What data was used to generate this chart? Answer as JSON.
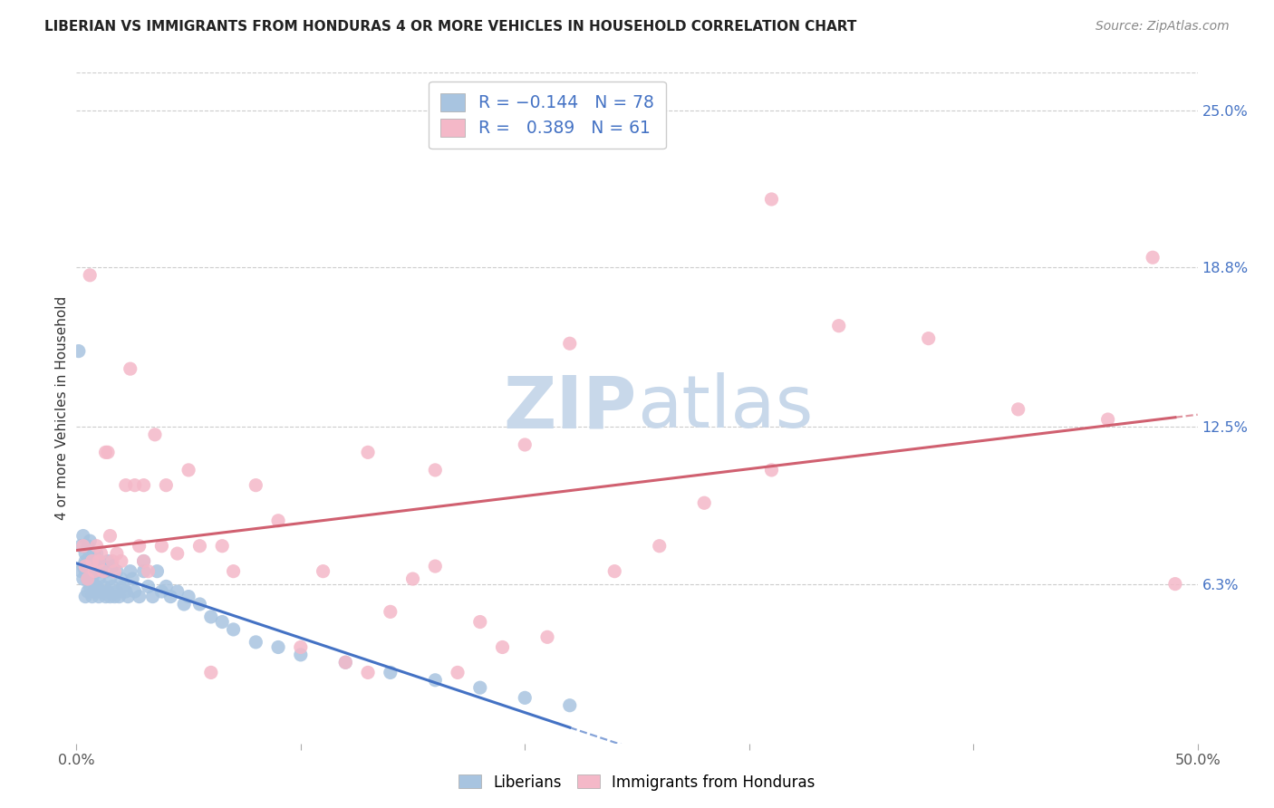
{
  "title": "LIBERIAN VS IMMIGRANTS FROM HONDURAS 4 OR MORE VEHICLES IN HOUSEHOLD CORRELATION CHART",
  "source": "Source: ZipAtlas.com",
  "ylabel": "4 or more Vehicles in Household",
  "xlim": [
    0.0,
    0.5
  ],
  "ylim": [
    0.0,
    0.265
  ],
  "ytick_labels_right": [
    "25.0%",
    "18.8%",
    "12.5%",
    "6.3%"
  ],
  "ytick_values_right": [
    0.25,
    0.188,
    0.125,
    0.063
  ],
  "liberian_R": -0.144,
  "liberian_N": 78,
  "honduras_R": 0.389,
  "honduras_N": 61,
  "liberian_color": "#a8c4e0",
  "liberian_line_color": "#4472c4",
  "honduras_color": "#f4b8c8",
  "honduras_line_color": "#d06070",
  "watermark_color": "#c8d8ea",
  "legend_labels": [
    "Liberians",
    "Immigrants from Honduras"
  ],
  "background_color": "#ffffff",
  "liberian_x": [
    0.001,
    0.002,
    0.002,
    0.003,
    0.003,
    0.003,
    0.004,
    0.004,
    0.004,
    0.004,
    0.005,
    0.005,
    0.005,
    0.005,
    0.006,
    0.006,
    0.006,
    0.006,
    0.007,
    0.007,
    0.007,
    0.008,
    0.008,
    0.008,
    0.009,
    0.009,
    0.009,
    0.01,
    0.01,
    0.01,
    0.011,
    0.011,
    0.012,
    0.012,
    0.013,
    0.013,
    0.014,
    0.014,
    0.015,
    0.015,
    0.016,
    0.016,
    0.017,
    0.018,
    0.018,
    0.019,
    0.02,
    0.021,
    0.022,
    0.023,
    0.024,
    0.025,
    0.026,
    0.028,
    0.03,
    0.03,
    0.032,
    0.034,
    0.036,
    0.038,
    0.04,
    0.042,
    0.045,
    0.048,
    0.05,
    0.055,
    0.06,
    0.065,
    0.07,
    0.08,
    0.09,
    0.1,
    0.12,
    0.14,
    0.16,
    0.18,
    0.2,
    0.22
  ],
  "liberian_y": [
    0.155,
    0.068,
    0.078,
    0.065,
    0.07,
    0.082,
    0.058,
    0.072,
    0.068,
    0.075,
    0.06,
    0.065,
    0.072,
    0.078,
    0.062,
    0.068,
    0.075,
    0.08,
    0.058,
    0.065,
    0.072,
    0.06,
    0.068,
    0.075,
    0.062,
    0.068,
    0.075,
    0.058,
    0.065,
    0.072,
    0.06,
    0.068,
    0.062,
    0.07,
    0.058,
    0.068,
    0.06,
    0.072,
    0.058,
    0.065,
    0.062,
    0.07,
    0.058,
    0.06,
    0.068,
    0.058,
    0.065,
    0.062,
    0.06,
    0.058,
    0.068,
    0.065,
    0.06,
    0.058,
    0.068,
    0.072,
    0.062,
    0.058,
    0.068,
    0.06,
    0.062,
    0.058,
    0.06,
    0.055,
    0.058,
    0.055,
    0.05,
    0.048,
    0.045,
    0.04,
    0.038,
    0.035,
    0.032,
    0.028,
    0.025,
    0.022,
    0.018,
    0.015
  ],
  "honduras_x": [
    0.003,
    0.004,
    0.005,
    0.006,
    0.007,
    0.008,
    0.009,
    0.01,
    0.011,
    0.012,
    0.013,
    0.014,
    0.015,
    0.016,
    0.017,
    0.018,
    0.02,
    0.022,
    0.024,
    0.026,
    0.028,
    0.03,
    0.03,
    0.032,
    0.035,
    0.038,
    0.04,
    0.045,
    0.05,
    0.055,
    0.06,
    0.065,
    0.07,
    0.08,
    0.09,
    0.1,
    0.11,
    0.12,
    0.13,
    0.14,
    0.15,
    0.16,
    0.17,
    0.18,
    0.19,
    0.2,
    0.21,
    0.22,
    0.24,
    0.26,
    0.28,
    0.31,
    0.34,
    0.38,
    0.42,
    0.46,
    0.49,
    0.13,
    0.16,
    0.31,
    0.48
  ],
  "honduras_y": [
    0.078,
    0.07,
    0.065,
    0.185,
    0.072,
    0.068,
    0.078,
    0.072,
    0.075,
    0.068,
    0.115,
    0.115,
    0.082,
    0.072,
    0.068,
    0.075,
    0.072,
    0.102,
    0.148,
    0.102,
    0.078,
    0.072,
    0.102,
    0.068,
    0.122,
    0.078,
    0.102,
    0.075,
    0.108,
    0.078,
    0.028,
    0.078,
    0.068,
    0.102,
    0.088,
    0.038,
    0.068,
    0.032,
    0.028,
    0.052,
    0.065,
    0.07,
    0.028,
    0.048,
    0.038,
    0.118,
    0.042,
    0.158,
    0.068,
    0.078,
    0.095,
    0.108,
    0.165,
    0.16,
    0.132,
    0.128,
    0.063,
    0.115,
    0.108,
    0.215,
    0.192
  ]
}
